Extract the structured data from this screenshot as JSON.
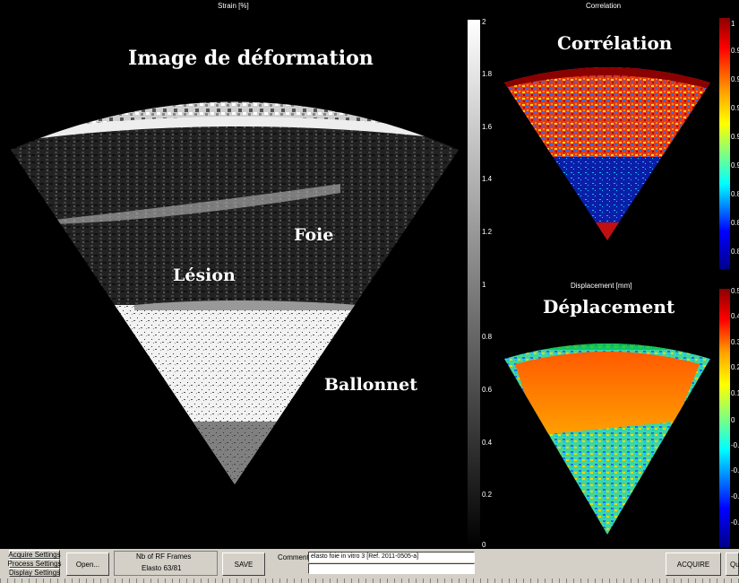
{
  "main_plot": {
    "title": "Strain [%]",
    "overlay_title": "Image de déformation",
    "labels": {
      "liver": "Foie",
      "lesion": "Lésion",
      "balloon": "Ballonnet"
    },
    "colorbar_ticks": [
      "2",
      "1.8",
      "1.6",
      "1.4",
      "1.2",
      "1",
      "0.8",
      "0.6",
      "0.4",
      "0.2",
      "0"
    ]
  },
  "correlation_plot": {
    "title": "Correlation",
    "overlay_title": "Corrélation",
    "colorbar_ticks": [
      "1",
      "0.9",
      "0.9",
      "0.9",
      "0.9",
      "0.9",
      "0.8",
      "0.8",
      "0.8"
    ]
  },
  "displacement_plot": {
    "title": "Displacement [mm]",
    "overlay_title": "Déplacement",
    "colorbar_ticks": [
      "0.5",
      "0.4",
      "0.3",
      "0.2",
      "0.1",
      "0",
      "-0.",
      "-0.",
      "-0.",
      "-0."
    ]
  },
  "controls": {
    "acquire_settings": "Acquire Settings",
    "process_settings": "Process Settings",
    "display_settings": "Display Settings",
    "open": "Open...",
    "nb_rf_frames_label": "Nb of RF Frames",
    "elasto_counter": "Elasto 63/81",
    "save": "SAVE",
    "comment_label": "Comment:",
    "comment_value": "elasto foie in vitro 3 [Ref. 2011-0505-a]",
    "comment_value_2": "",
    "acquire": "ACQUIRE",
    "quit": "Qu"
  },
  "colors": {
    "background": "#000000",
    "panel_gray": "#d4d0c8",
    "jet_red": "#8b0000",
    "jet_blue": "#00008b"
  }
}
